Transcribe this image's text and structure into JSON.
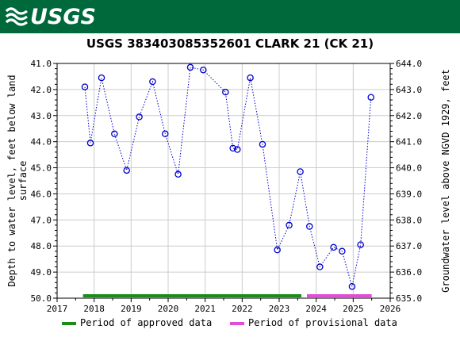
{
  "header": {
    "logo_text": "USGS"
  },
  "colors": {
    "banner": "#00693c",
    "series": "#0000cc",
    "approved": "#1a8c1a",
    "provisional": "#e04ed8"
  },
  "chart_data": {
    "type": "scatter",
    "title": "USGS 383403085352601 CLARK 21 (CK 21)",
    "ylabel_left": [
      "Depth to water level, feet below land",
      "surface"
    ],
    "ylabel_right": "Groundwater level above NGVD 1929, feet",
    "xlim": [
      2017,
      2026
    ],
    "ylim_left": [
      41.0,
      50.0
    ],
    "left_axis_inverted": true,
    "ylim_right": [
      635.0,
      644.0
    ],
    "x_ticks": [
      "2017",
      "2018",
      "2019",
      "2020",
      "2021",
      "2022",
      "2023",
      "2024",
      "2025",
      "2026"
    ],
    "y_ticks_left": [
      "41.0",
      "42.0",
      "43.0",
      "44.0",
      "45.0",
      "46.0",
      "47.0",
      "48.0",
      "49.0",
      "50.0"
    ],
    "y_ticks_right": [
      "644.0",
      "643.0",
      "642.0",
      "641.0",
      "640.0",
      "639.0",
      "638.0",
      "637.0",
      "636.0",
      "635.0"
    ],
    "grid": true,
    "series": [
      {
        "points": [
          [
            2017.75,
            41.9
          ],
          [
            2017.9,
            44.05
          ],
          [
            2018.2,
            41.55
          ],
          [
            2018.55,
            43.7
          ],
          [
            2018.88,
            45.1
          ],
          [
            2019.22,
            43.05
          ],
          [
            2019.58,
            41.7
          ],
          [
            2019.92,
            43.7
          ],
          [
            2020.27,
            45.25
          ],
          [
            2020.6,
            41.15
          ],
          [
            2020.95,
            41.25
          ],
          [
            2021.55,
            42.1
          ],
          [
            2021.75,
            44.25
          ],
          [
            2021.87,
            44.3
          ],
          [
            2022.22,
            41.55
          ],
          [
            2022.55,
            44.1
          ],
          [
            2022.95,
            48.15
          ],
          [
            2023.27,
            47.2
          ],
          [
            2023.57,
            45.15
          ],
          [
            2023.82,
            47.25
          ],
          [
            2024.1,
            48.8
          ],
          [
            2024.47,
            48.05
          ],
          [
            2024.7,
            48.2
          ],
          [
            2024.97,
            49.55
          ],
          [
            2025.2,
            47.95
          ],
          [
            2025.48,
            42.3
          ]
        ]
      }
    ],
    "periods": [
      {
        "label": "Period of approved data",
        "start": 2017.7,
        "end": 2023.6
      },
      {
        "label": "Period of provisional data",
        "start": 2023.75,
        "end": 2025.5
      }
    ]
  }
}
